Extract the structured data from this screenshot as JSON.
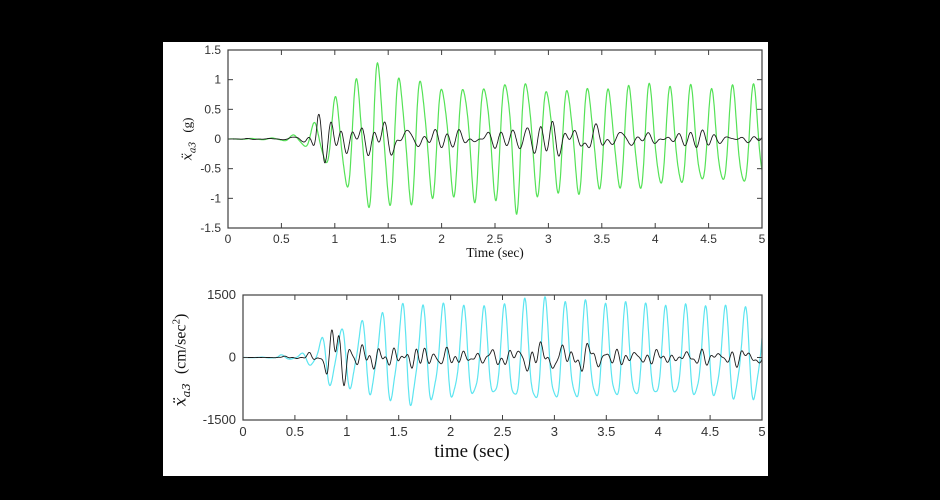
{
  "figure": {
    "page_background": "#000000",
    "canvas_background": "#ffffff",
    "frame_color": "#3f3f3f",
    "tick_label_color": "#333333",
    "label_color": "#111111"
  },
  "chart_data": [
    {
      "id": "top",
      "type": "line",
      "title": "",
      "xlabel": "Time (sec)",
      "ylabel": {
        "variable": "ẍ",
        "subscript": "a3",
        "unit": "(g)"
      },
      "xlim": [
        0,
        5
      ],
      "ylim": [
        -1.5,
        1.5
      ],
      "grid": false,
      "legend": "none",
      "xticks": {
        "values": [
          0,
          0.5,
          1,
          1.5,
          2,
          2.5,
          3,
          3.5,
          4,
          4.5,
          5
        ],
        "labels": [
          "0",
          "0.5",
          "1",
          "1.5",
          "2",
          "2.5",
          "3",
          "3.5",
          "4",
          "4.5",
          "5"
        ]
      },
      "yticks": {
        "values": [
          1.5,
          1,
          0.5,
          0,
          -0.5,
          -1,
          -1.5
        ],
        "labels": [
          "1.5",
          "1",
          "0.5",
          "0",
          "-0.5",
          "-1",
          "-1.5"
        ]
      },
      "series": [
        {
          "name": "uncontrolled-acceleration-g",
          "color": "#55e257",
          "line_width": 1.2,
          "model": {
            "kind": "harmonic",
            "freq_hz": 5.1,
            "phase": 0.4,
            "wobble_amp": 0.5,
            "wobble_freq_hz": 0.23,
            "wobble_phase": 1.1,
            "harmonic2": 0.16,
            "harmonic2_phase": 0.7
          },
          "envelope": [
            [
              0,
              0
            ],
            [
              0.48,
              0.02
            ],
            [
              0.56,
              0.05
            ],
            [
              0.66,
              0.09
            ],
            [
              0.76,
              0.2
            ],
            [
              0.86,
              0.38
            ],
            [
              0.95,
              0.55
            ],
            [
              1.05,
              0.9
            ],
            [
              1.15,
              1.0
            ],
            [
              1.25,
              1.15
            ],
            [
              1.37,
              1.45
            ],
            [
              1.5,
              1.25
            ],
            [
              1.62,
              1.15
            ],
            [
              1.75,
              1.2
            ],
            [
              1.9,
              1.05
            ],
            [
              2.1,
              1.0
            ],
            [
              2.3,
              1.1
            ],
            [
              2.5,
              1.05
            ],
            [
              2.7,
              1.3
            ],
            [
              2.9,
              1.0
            ],
            [
              3.1,
              0.95
            ],
            [
              3.3,
              1.0
            ],
            [
              3.5,
              0.92
            ],
            [
              3.7,
              0.95
            ],
            [
              3.9,
              1.0
            ],
            [
              4.1,
              0.9
            ],
            [
              4.3,
              0.95
            ],
            [
              4.5,
              0.85
            ],
            [
              4.7,
              0.92
            ],
            [
              5,
              0.95
            ]
          ]
        },
        {
          "name": "controlled-acceleration-g",
          "color": "#1b1b1b",
          "line_width": 0.9,
          "model": {
            "kind": "broadband",
            "seed": 11,
            "components": 8,
            "freq_range_hz": [
              3,
              15
            ]
          },
          "envelope": [
            [
              0,
              0
            ],
            [
              0.55,
              0.02
            ],
            [
              0.62,
              0.1
            ],
            [
              0.7,
              0.12
            ],
            [
              0.78,
              0.3
            ],
            [
              0.84,
              0.75
            ],
            [
              0.92,
              0.55
            ],
            [
              1.0,
              0.5
            ],
            [
              1.1,
              0.42
            ],
            [
              1.2,
              0.3
            ],
            [
              1.35,
              0.3
            ],
            [
              1.5,
              0.38
            ],
            [
              1.62,
              0.4
            ],
            [
              1.75,
              0.25
            ],
            [
              1.9,
              0.18
            ],
            [
              2.1,
              0.16
            ],
            [
              2.4,
              0.15
            ],
            [
              2.7,
              0.2
            ],
            [
              2.85,
              0.35
            ],
            [
              3.0,
              0.3
            ],
            [
              3.2,
              0.2
            ],
            [
              3.35,
              0.26
            ],
            [
              3.6,
              0.15
            ],
            [
              3.9,
              0.18
            ],
            [
              4.2,
              0.14
            ],
            [
              4.5,
              0.16
            ],
            [
              4.8,
              0.13
            ],
            [
              5,
              0.12
            ]
          ]
        }
      ]
    },
    {
      "id": "bottom",
      "type": "line",
      "title": "",
      "xlabel": "time (sec)",
      "ylabel": {
        "variable": "ẍ",
        "subscript": "a3",
        "unit_prefix": "(cm/sec",
        "unit_superscript": "2",
        "unit_suffix": ")"
      },
      "xlim": [
        0,
        5
      ],
      "ylim": [
        -1500,
        1500
      ],
      "grid": false,
      "legend": "none",
      "xticks": {
        "values": [
          0,
          0.5,
          1,
          1.5,
          2,
          2.5,
          3,
          3.5,
          4,
          4.5,
          5
        ],
        "labels": [
          "0",
          "0.5",
          "1",
          "1.5",
          "2",
          "2.5",
          "3",
          "3.5",
          "4",
          "4.5",
          "5"
        ]
      },
      "yticks": {
        "values": [
          1500,
          0,
          -1500
        ],
        "labels": [
          "1500",
          "0",
          "-1500"
        ]
      },
      "series": [
        {
          "name": "uncontrolled-acceleration-cms2",
          "color": "#5de5f0",
          "line_width": 1.2,
          "model": {
            "kind": "harmonic",
            "freq_hz": 5.15,
            "phase": 2.0,
            "wobble_amp": 0.45,
            "wobble_freq_hz": 0.21,
            "wobble_phase": 0.4,
            "harmonic2": 0.22,
            "harmonic2_phase": 1.9
          },
          "envelope": [
            [
              0,
              0
            ],
            [
              0.3,
              15
            ],
            [
              0.36,
              75
            ],
            [
              0.44,
              45
            ],
            [
              0.52,
              60
            ],
            [
              0.6,
              150
            ],
            [
              0.7,
              300
            ],
            [
              0.8,
              675
            ],
            [
              0.88,
              900
            ],
            [
              0.95,
              750
            ],
            [
              1.05,
              900
            ],
            [
              1.15,
              975
            ],
            [
              1.3,
              1125
            ],
            [
              1.45,
              1275
            ],
            [
              1.6,
              1450
            ],
            [
              1.75,
              1300
            ],
            [
              1.9,
              1350
            ],
            [
              2.1,
              1275
            ],
            [
              2.3,
              1245
            ],
            [
              2.5,
              1275
            ],
            [
              2.7,
              1425
            ],
            [
              2.9,
              1470
            ],
            [
              3.1,
              1350
            ],
            [
              3.3,
              1395
            ],
            [
              3.5,
              1305
            ],
            [
              3.7,
              1350
            ],
            [
              3.9,
              1305
            ],
            [
              4.1,
              1245
            ],
            [
              4.3,
              1305
            ],
            [
              4.5,
              1245
            ],
            [
              4.7,
              1305
            ],
            [
              5,
              1245
            ]
          ]
        },
        {
          "name": "controlled-acceleration-cms2",
          "color": "#1b1b1b",
          "line_width": 0.9,
          "model": {
            "kind": "broadband",
            "seed": 13,
            "components": 8,
            "freq_range_hz": [
              3,
              15
            ]
          },
          "envelope": [
            [
              0,
              0
            ],
            [
              0.3,
              5
            ],
            [
              0.38,
              40
            ],
            [
              0.5,
              25
            ],
            [
              0.58,
              30
            ],
            [
              0.65,
              120
            ],
            [
              0.75,
              150
            ],
            [
              0.82,
              550
            ],
            [
              0.87,
              800
            ],
            [
              0.95,
              550
            ],
            [
              1.05,
              500
            ],
            [
              1.2,
              380
            ],
            [
              1.35,
              320
            ],
            [
              1.5,
              420
            ],
            [
              1.65,
              380
            ],
            [
              1.8,
              280
            ],
            [
              2.0,
              230
            ],
            [
              2.3,
              200
            ],
            [
              2.6,
              250
            ],
            [
              2.85,
              320
            ],
            [
              3.0,
              270
            ],
            [
              3.3,
              380
            ],
            [
              3.5,
              230
            ],
            [
              3.8,
              200
            ],
            [
              4.1,
              230
            ],
            [
              4.4,
              200
            ],
            [
              4.7,
              220
            ],
            [
              5,
              200
            ]
          ]
        }
      ]
    }
  ]
}
